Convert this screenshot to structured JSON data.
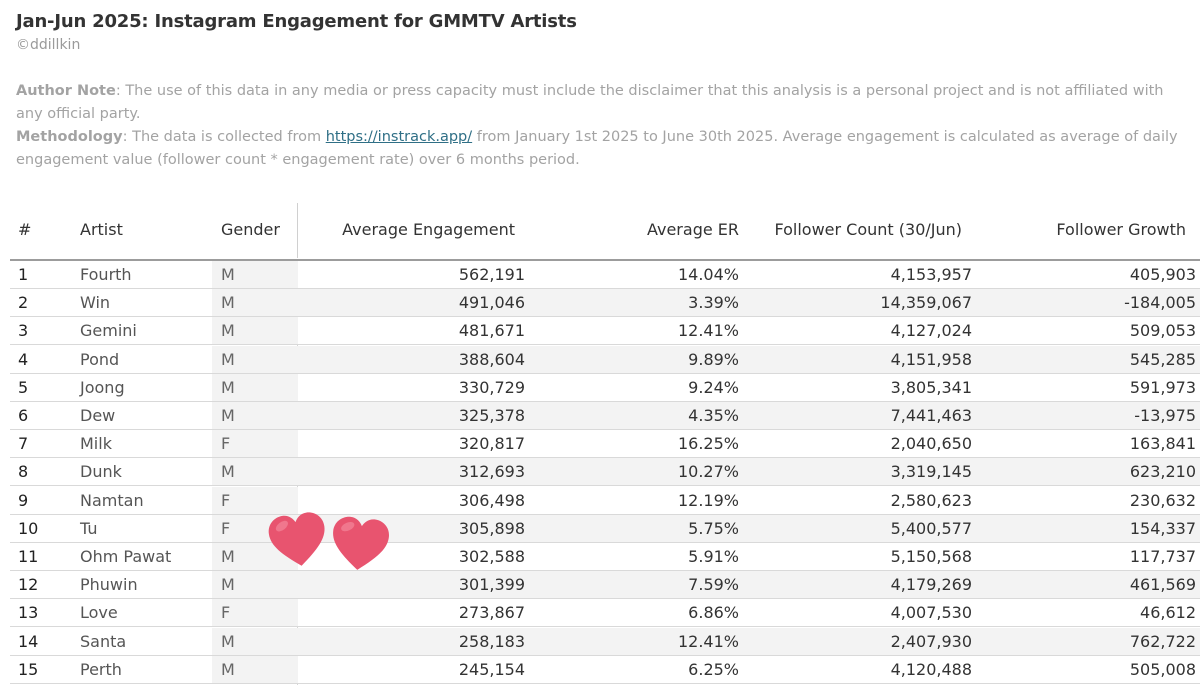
{
  "header": {
    "title": "Jan-Jun 2025: Instagram Engagement for GMMTV Artists",
    "credit": "©ddillkin"
  },
  "notes": {
    "author_label": "Author Note",
    "author_text": ": The use of this data in any media or press capacity must include the disclaimer that this analysis is a personal project and is not affiliated with any official party.",
    "method_label": "Methodology",
    "method_text_1": ": The data is collected from ",
    "method_link": "https://instrack.app/",
    "method_text_2": " from January 1st 2025 to June 30th 2025. Average engagement is calculated as average of daily engagement value (follower count * engagement rate) over 6 months period."
  },
  "decor": {
    "heart_color": "#e8546f",
    "heart_highlight": "#f58fa2",
    "heart_icon": "heart-icon"
  },
  "chart_data": {
    "type": "table",
    "title": "Jan-Jun 2025: Instagram Engagement for GMMTV Artists",
    "columns": [
      "#",
      "Artist",
      "Gender",
      "Average Engagement",
      "Average ER",
      "Follower Count (30/Jun)",
      "Follower Growth"
    ],
    "rows": [
      [
        "1",
        "Fourth",
        "M",
        "562,191",
        "14.04%",
        "4,153,957",
        "405,903"
      ],
      [
        "2",
        "Win",
        "M",
        "491,046",
        "3.39%",
        "14,359,067",
        "-184,005"
      ],
      [
        "3",
        "Gemini",
        "M",
        "481,671",
        "12.41%",
        "4,127,024",
        "509,053"
      ],
      [
        "4",
        "Pond",
        "M",
        "388,604",
        "9.89%",
        "4,151,958",
        "545,285"
      ],
      [
        "5",
        "Joong",
        "M",
        "330,729",
        "9.24%",
        "3,805,341",
        "591,973"
      ],
      [
        "6",
        "Dew",
        "M",
        "325,378",
        "4.35%",
        "7,441,463",
        "-13,975"
      ],
      [
        "7",
        "Milk",
        "F",
        "320,817",
        "16.25%",
        "2,040,650",
        "163,841"
      ],
      [
        "8",
        "Dunk",
        "M",
        "312,693",
        "10.27%",
        "3,319,145",
        "623,210"
      ],
      [
        "9",
        "Namtan",
        "F",
        "306,498",
        "12.19%",
        "2,580,623",
        "230,632"
      ],
      [
        "10",
        "Tu",
        "F",
        "305,898",
        "5.75%",
        "5,400,577",
        "154,337"
      ],
      [
        "11",
        "Ohm Pawat",
        "M",
        "302,588",
        "5.91%",
        "5,150,568",
        "117,737"
      ],
      [
        "12",
        "Phuwin",
        "M",
        "301,399",
        "7.59%",
        "4,179,269",
        "461,569"
      ],
      [
        "13",
        "Love",
        "F",
        "273,867",
        "6.86%",
        "4,007,530",
        "46,612"
      ],
      [
        "14",
        "Santa",
        "M",
        "258,183",
        "12.41%",
        "2,407,930",
        "762,722"
      ],
      [
        "15",
        "Perth",
        "M",
        "245,154",
        "6.25%",
        "4,120,488",
        "505,008"
      ]
    ]
  }
}
